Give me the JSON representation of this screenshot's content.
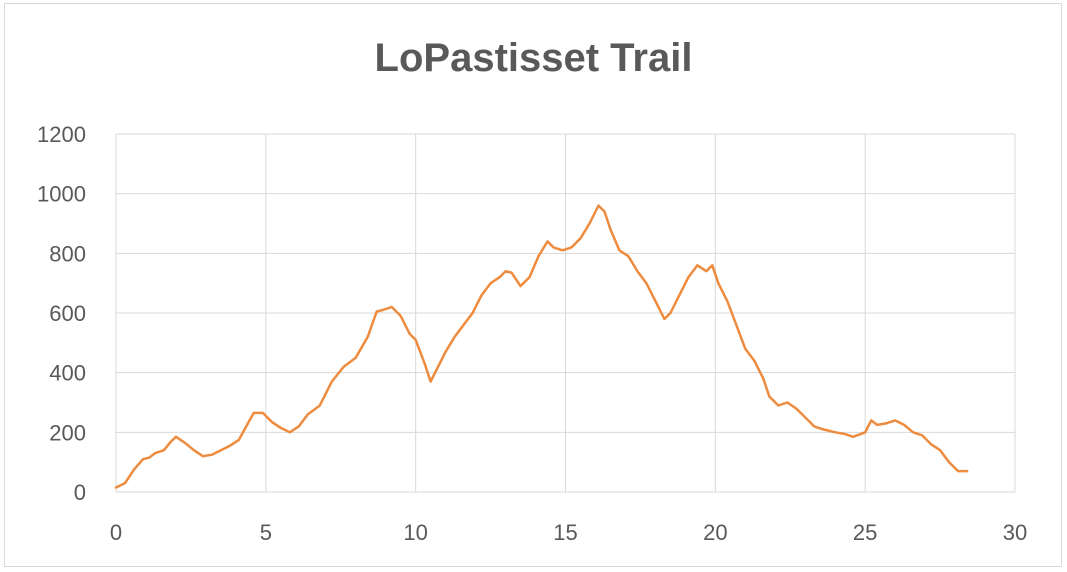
{
  "chart_data": {
    "type": "line",
    "title": "LoPastisset Trail",
    "xlabel": "",
    "ylabel": "",
    "xlim": [
      0,
      30
    ],
    "ylim": [
      0,
      1200
    ],
    "x_ticks": [
      "0",
      "5",
      "10",
      "15",
      "20",
      "25",
      "30"
    ],
    "y_ticks": [
      "0",
      "200",
      "400",
      "600",
      "800",
      "1000",
      "1200"
    ],
    "grid": true,
    "legend": "none",
    "series": [
      {
        "color": "#ED8B3F",
        "x": [
          0,
          0.3,
          0.6,
          0.9,
          1.1,
          1.3,
          1.6,
          1.8,
          2.0,
          2.3,
          2.6,
          2.9,
          3.2,
          3.5,
          3.8,
          4.1,
          4.4,
          4.6,
          4.9,
          5.2,
          5.5,
          5.8,
          6.1,
          6.4,
          6.8,
          7.2,
          7.6,
          8.0,
          8.4,
          8.7,
          8.9,
          9.2,
          9.5,
          9.8,
          10.0,
          10.3,
          10.5,
          10.8,
          11.0,
          11.3,
          11.6,
          11.9,
          12.2,
          12.5,
          12.8,
          13.0,
          13.2,
          13.5,
          13.8,
          14.1,
          14.4,
          14.6,
          14.9,
          15.2,
          15.5,
          15.8,
          16.1,
          16.3,
          16.5,
          16.8,
          17.1,
          17.4,
          17.7,
          18.0,
          18.3,
          18.5,
          18.8,
          19.1,
          19.4,
          19.7,
          19.9,
          20.1,
          20.4,
          20.7,
          21.0,
          21.3,
          21.6,
          21.8,
          22.1,
          22.4,
          22.7,
          23.0,
          23.3,
          23.6,
          24.0,
          24.3,
          24.6,
          25.0,
          25.2,
          25.4,
          25.7,
          26.0,
          26.3,
          26.6,
          26.9,
          27.2,
          27.5,
          27.8,
          28.1,
          28.4
        ],
        "values": [
          15,
          30,
          75,
          110,
          115,
          130,
          140,
          165,
          185,
          165,
          140,
          120,
          125,
          140,
          155,
          175,
          230,
          265,
          265,
          235,
          215,
          200,
          220,
          260,
          290,
          370,
          420,
          450,
          520,
          605,
          610,
          620,
          590,
          530,
          510,
          430,
          370,
          430,
          470,
          520,
          560,
          600,
          660,
          700,
          720,
          740,
          735,
          690,
          720,
          790,
          840,
          820,
          810,
          820,
          850,
          900,
          960,
          940,
          880,
          810,
          790,
          740,
          700,
          640,
          580,
          600,
          660,
          720,
          760,
          740,
          760,
          700,
          640,
          560,
          480,
          440,
          380,
          320,
          290,
          300,
          280,
          250,
          220,
          210,
          200,
          195,
          185,
          200,
          240,
          225,
          230,
          240,
          225,
          200,
          190,
          160,
          140,
          100,
          70,
          70
        ]
      }
    ]
  }
}
